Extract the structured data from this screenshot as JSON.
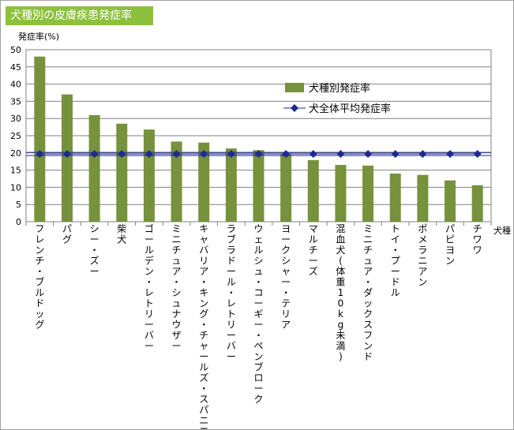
{
  "title": "犬種別の皮膚疾患発症率",
  "chart_data": {
    "type": "bar",
    "ylabel": "発症率(%)",
    "xlabel": "犬種",
    "ylim": [
      0,
      50
    ],
    "yticks": [
      0,
      5,
      10,
      15,
      20,
      25,
      30,
      35,
      40,
      45,
      50
    ],
    "grid": true,
    "legend_position": "top-right",
    "categories": [
      "フレンチ・ブルドッグ",
      "パグ",
      "シー・ズー",
      "柴犬",
      "ゴールデン・レトリーバー",
      "ミニチュア・シュナウザー",
      "キャバリア・キング・チャールズ・スパニエル",
      "ラブラドール・レトリーバー",
      "ウェルシュ・コーギー・ペンブローク",
      "ヨークシャー・テリア",
      "マルチーズ",
      "混血犬(体重10kg未満)",
      "ミニチュア・ダックスフンド",
      "トイ・プードル",
      "ポメラニアン",
      "パピヨン",
      "チワワ"
    ],
    "series": [
      {
        "name": "犬種別発症率",
        "type": "bar",
        "color": "#76923c",
        "values": [
          48,
          37,
          31,
          28.5,
          26.8,
          23.3,
          23,
          21.3,
          20.8,
          19.6,
          17.9,
          16.5,
          16.3,
          14,
          13.6,
          12,
          10.6
        ]
      },
      {
        "name": "犬全体平均発症率",
        "type": "line",
        "color": "#1f2a8f",
        "values": [
          19.7,
          19.7,
          19.7,
          19.7,
          19.7,
          19.7,
          19.7,
          19.7,
          19.7,
          19.7,
          19.7,
          19.7,
          19.7,
          19.7,
          19.7,
          19.7,
          19.7
        ]
      }
    ]
  }
}
